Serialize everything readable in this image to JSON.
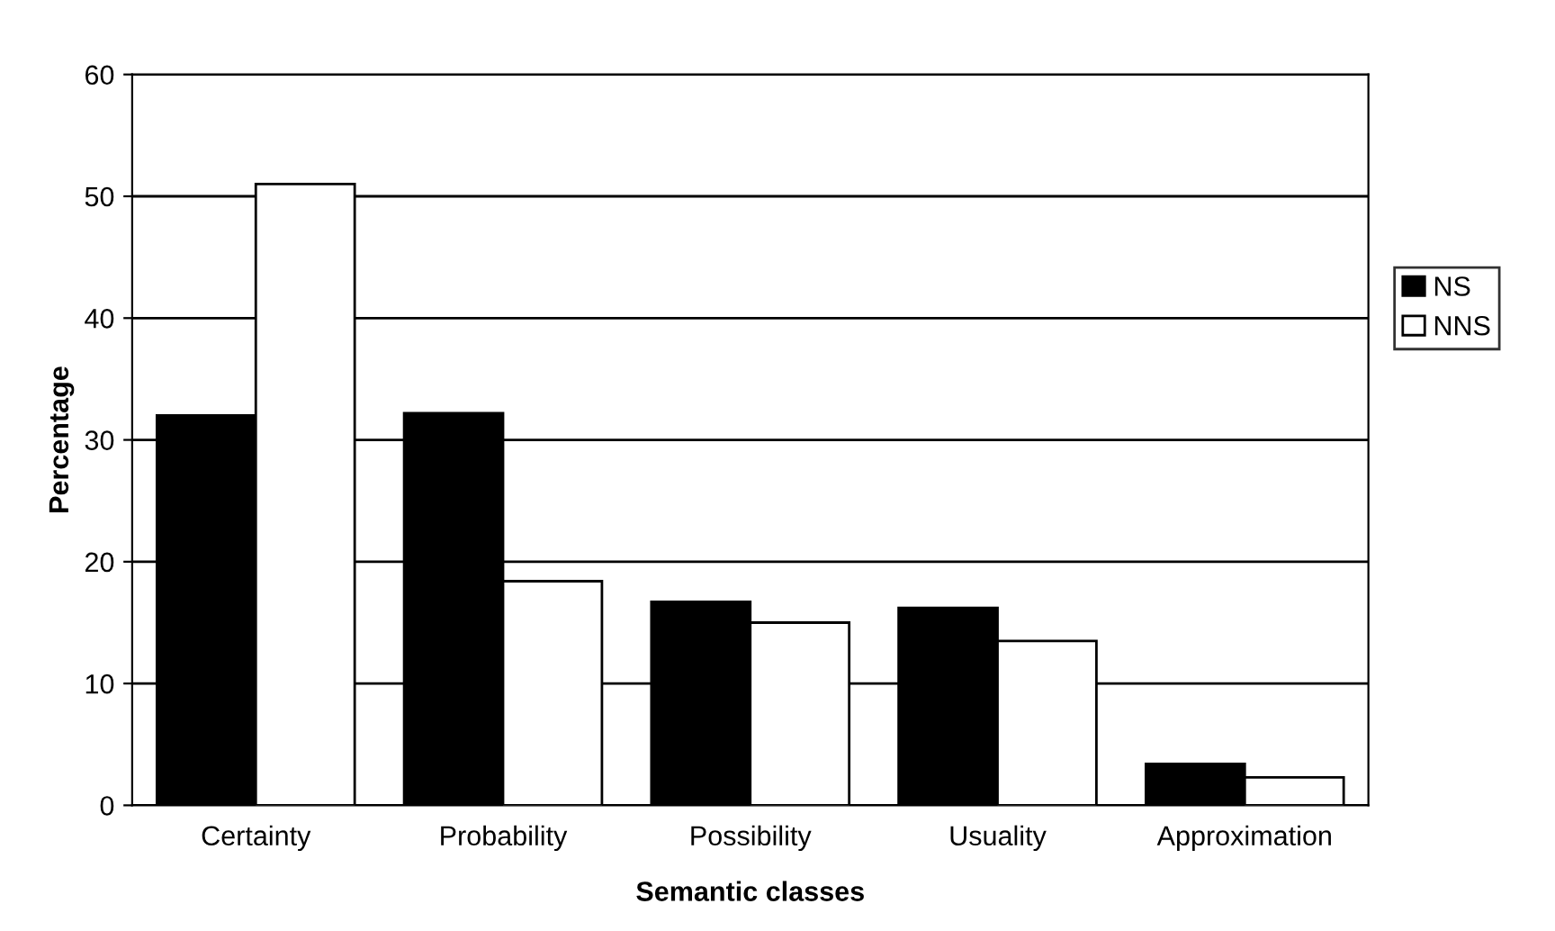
{
  "chart_data": {
    "type": "bar",
    "xlabel": "Semantic classes",
    "ylabel": "Percentage",
    "categories": [
      "Certainty",
      "Probability",
      "Possibility",
      "Usuality",
      "Approximation"
    ],
    "series": [
      {
        "name": "NS",
        "color": "#000000",
        "values": [
          32,
          32.2,
          16.7,
          16.2,
          3.4
        ]
      },
      {
        "name": "NNS",
        "color": "#ffffff",
        "values": [
          51,
          18.4,
          15,
          13.5,
          2.3
        ]
      }
    ],
    "ylim": [
      0,
      60
    ],
    "yticks": [
      0,
      10,
      20,
      30,
      40,
      50,
      60
    ],
    "grid": "y",
    "legend": "right"
  }
}
